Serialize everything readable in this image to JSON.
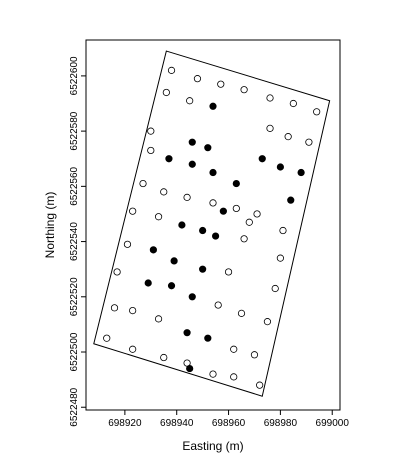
{
  "chart_data": {
    "type": "scatter",
    "x_label": "Easting (m)",
    "y_label": "Northing (m)",
    "xlim": [
      698905,
      699003
    ],
    "ylim": [
      6522479,
      6522613
    ],
    "xticks": [
      698920,
      698940,
      698960,
      698980,
      699000
    ],
    "yticks": [
      6522480,
      6522500,
      6522520,
      6522540,
      6522560,
      6522580,
      6522600
    ],
    "boundary": {
      "x": [
        698936,
        698999,
        698973,
        698908
      ],
      "y": [
        6522609,
        6522591,
        6522484,
        6522503
      ],
      "color": "#000000"
    },
    "series": [
      {
        "color": "#000000",
        "filled": false,
        "x": [
          698938,
          698948,
          698957,
          698966,
          698976,
          698985,
          698994,
          698936,
          698945,
          698976,
          698983,
          698991,
          698930,
          698930,
          698927,
          698935,
          698944,
          698954,
          698963,
          698971,
          698923,
          698933,
          698968,
          698966,
          698921,
          698981,
          698980,
          698917,
          698960,
          698978,
          698916,
          698923,
          698933,
          698956,
          698965,
          698975,
          698913,
          698923,
          698935,
          698944,
          698954,
          698962,
          698972,
          698970,
          698962
        ],
        "y": [
          6522602,
          6522599,
          6522597,
          6522595,
          6522592,
          6522590,
          6522587,
          6522594,
          6522591,
          6522581,
          6522578,
          6522576,
          6522580,
          6522573,
          6522561,
          6522558,
          6522556,
          6522554,
          6522552,
          6522550,
          6522551,
          6522549,
          6522547,
          6522541,
          6522539,
          6522544,
          6522534,
          6522529,
          6522529,
          6522523,
          6522516,
          6522515,
          6522512,
          6522517,
          6522514,
          6522511,
          6522505,
          6522501,
          6522498,
          6522496,
          6522492,
          6522491,
          6522488,
          6522499,
          6522501
        ]
      },
      {
        "color": "#000000",
        "filled": true,
        "x": [
          698954,
          698946,
          698952,
          698937,
          698946,
          698954,
          698973,
          698980,
          698988,
          698963,
          698984,
          698958,
          698942,
          698950,
          698955,
          698931,
          698939,
          698950,
          698929,
          698938,
          698946,
          698944,
          698952,
          698945
        ],
        "y": [
          6522589,
          6522576,
          6522574,
          6522570,
          6522568,
          6522565,
          6522570,
          6522567,
          6522565,
          6522561,
          6522555,
          6522551,
          6522546,
          6522544,
          6522542,
          6522537,
          6522533,
          6522530,
          6522525,
          6522524,
          6522520,
          6522507,
          6522505,
          6522494
        ]
      }
    ]
  }
}
